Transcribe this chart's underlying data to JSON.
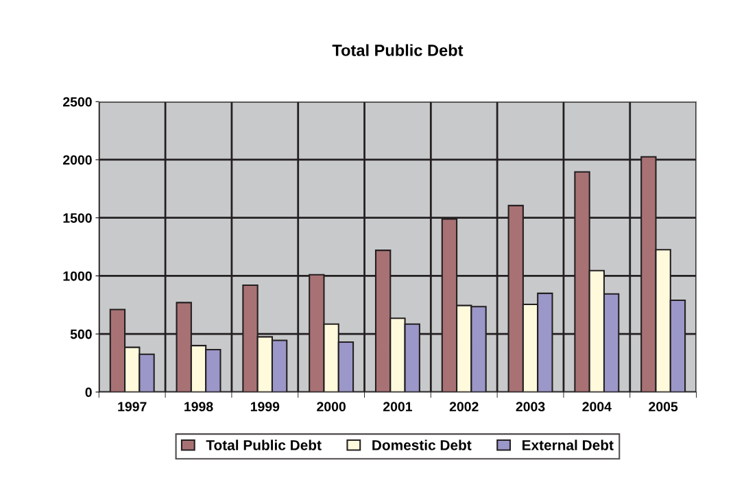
{
  "chart_data": {
    "type": "bar",
    "title": "Total Public Debt",
    "categories": [
      "1997",
      "1998",
      "1999",
      "2000",
      "2001",
      "2002",
      "2003",
      "2004",
      "2005"
    ],
    "series": [
      {
        "name": "Total Public Debt",
        "color": "#a87274",
        "values": [
          710,
          770,
          920,
          1010,
          1220,
          1490,
          1605,
          1895,
          2025
        ]
      },
      {
        "name": "Domestic Debt",
        "color": "#fffadc",
        "values": [
          385,
          400,
          475,
          585,
          635,
          745,
          755,
          1045,
          1225
        ]
      },
      {
        "name": "External Debt",
        "color": "#9b97c8",
        "values": [
          325,
          365,
          445,
          430,
          585,
          735,
          850,
          845,
          790
        ]
      }
    ],
    "ylim": [
      0,
      2500
    ],
    "yticks": [
      0,
      500,
      1000,
      1500,
      2000,
      2500
    ],
    "grid": true,
    "legend": "bottom"
  }
}
